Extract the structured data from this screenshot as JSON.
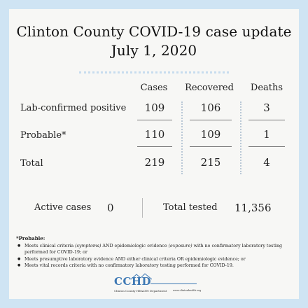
{
  "header": {
    "title_line1": "Clinton County COVID-19 case update",
    "title_line2": "July 1, 2020"
  },
  "table": {
    "columns": [
      "Cases",
      "Recovered",
      "Deaths"
    ],
    "rows": [
      {
        "label": "Lab-confirmed positive",
        "cases": "109",
        "recovered": "106",
        "deaths": "3"
      },
      {
        "label": "Probable*",
        "cases": "110",
        "recovered": "109",
        "deaths": "1"
      },
      {
        "label": "Total",
        "cases": "219",
        "recovered": "215",
        "deaths": "4"
      }
    ]
  },
  "summary": {
    "active_label": "Active cases",
    "active_value": "0",
    "tested_label": "Total tested",
    "tested_value": "11,356"
  },
  "footnote": {
    "title": "*Probable:",
    "items": [
      "Meets clinical criteria (symptoms) AND epidemiologic evidence (exposure) with no confirmatory laboratory testing performed for COVID-19; or",
      "Meets presumptive laboratory evidence AND either clinical criteria OR epidemiologic evidence; or",
      "Meets vital records criteria with no confirmatory laboratory testing performed for COVID-19."
    ]
  },
  "logo": {
    "name": "CCHD",
    "subtitle": "Clinton County HEALTH Department",
    "url": "www.clintonhealth.org"
  },
  "colors": {
    "background": "#cfe4f3",
    "card": "#f7f7f5",
    "accent": "#3d78b4"
  }
}
